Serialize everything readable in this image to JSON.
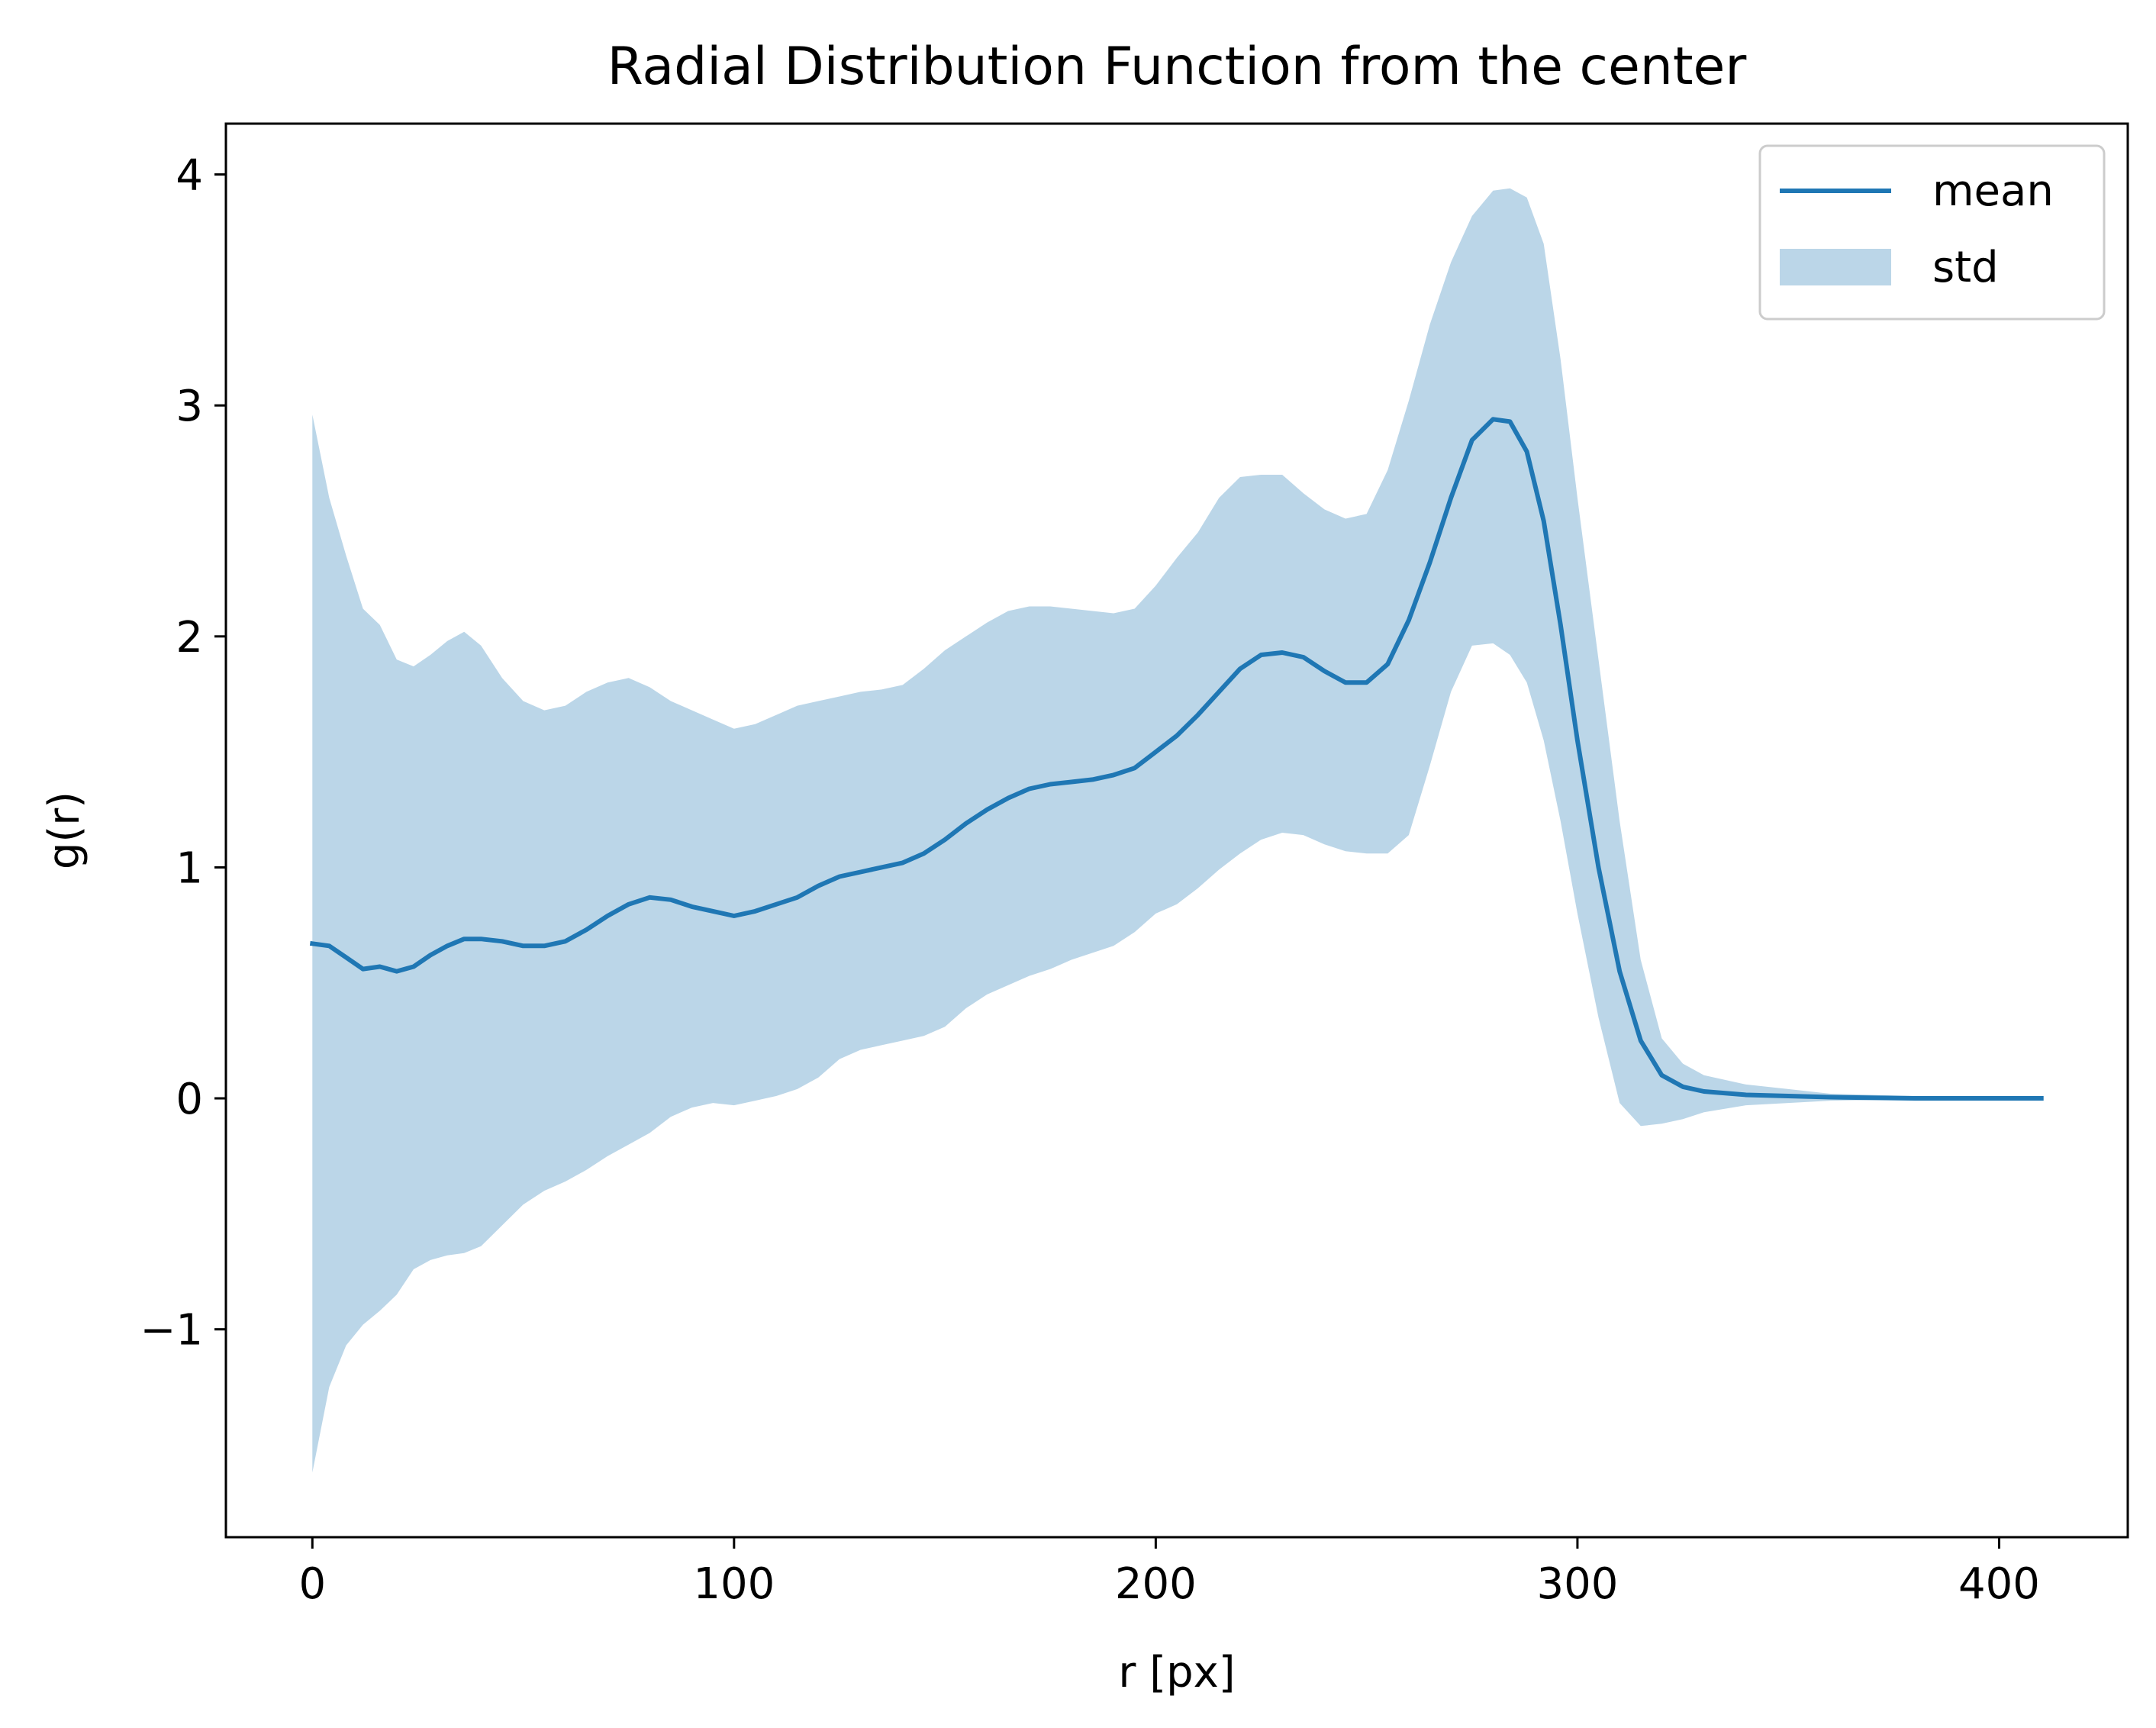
{
  "chart_data": {
    "type": "line",
    "title": "Radial Distribution Function from the center",
    "xlabel": "r [px]",
    "ylabel": "g(r)",
    "xlim": [
      -20.5,
      430.5
    ],
    "ylim": [
      -1.9,
      4.22
    ],
    "xticks": [
      0,
      100,
      200,
      300,
      400
    ],
    "xtick_labels": [
      "0",
      "100",
      "200",
      "300",
      "400"
    ],
    "yticks": [
      -1,
      0,
      1,
      2,
      3,
      4
    ],
    "ytick_labels": [
      "−1",
      "0",
      "1",
      "2",
      "3",
      "4"
    ],
    "grid": false,
    "legend": {
      "placement": "top-right",
      "entries": [
        {
          "label": "mean",
          "kind": "line",
          "color": "#1f77b4"
        },
        {
          "label": "std",
          "kind": "area",
          "color": "#bbd6e8"
        }
      ]
    },
    "x": [
      0,
      4,
      8,
      12,
      16,
      20,
      24,
      28,
      32,
      36,
      40,
      45,
      50,
      55,
      60,
      65,
      70,
      75,
      80,
      85,
      90,
      95,
      100,
      105,
      110,
      115,
      120,
      125,
      130,
      135,
      140,
      145,
      150,
      155,
      160,
      165,
      170,
      175,
      180,
      185,
      190,
      195,
      200,
      205,
      210,
      215,
      220,
      225,
      230,
      235,
      240,
      245,
      250,
      255,
      260,
      265,
      270,
      275,
      280,
      284,
      288,
      292,
      296,
      300,
      305,
      310,
      315,
      320,
      325,
      330,
      340,
      350,
      360,
      380,
      400,
      410
    ],
    "series": [
      {
        "name": "mean",
        "color": "#1f77b4",
        "values": [
          0.67,
          0.66,
          0.61,
          0.56,
          0.57,
          0.55,
          0.57,
          0.62,
          0.66,
          0.69,
          0.69,
          0.68,
          0.66,
          0.66,
          0.68,
          0.73,
          0.79,
          0.84,
          0.87,
          0.86,
          0.83,
          0.81,
          0.79,
          0.81,
          0.84,
          0.87,
          0.92,
          0.96,
          0.98,
          1.0,
          1.02,
          1.06,
          1.12,
          1.19,
          1.25,
          1.3,
          1.34,
          1.36,
          1.37,
          1.38,
          1.4,
          1.43,
          1.5,
          1.57,
          1.66,
          1.76,
          1.86,
          1.92,
          1.93,
          1.91,
          1.85,
          1.8,
          1.8,
          1.88,
          2.07,
          2.32,
          2.6,
          2.85,
          2.94,
          2.93,
          2.8,
          2.5,
          2.05,
          1.55,
          1.0,
          0.55,
          0.25,
          0.1,
          0.05,
          0.03,
          0.015,
          0.01,
          0.005,
          0.0,
          0.0,
          0.0
        ]
      },
      {
        "name": "std",
        "color": "#bbd6e8",
        "upper": [
          2.96,
          2.6,
          2.35,
          2.12,
          2.05,
          1.9,
          1.87,
          1.92,
          1.98,
          2.02,
          1.96,
          1.82,
          1.72,
          1.68,
          1.7,
          1.76,
          1.8,
          1.82,
          1.78,
          1.72,
          1.68,
          1.64,
          1.6,
          1.62,
          1.66,
          1.7,
          1.72,
          1.74,
          1.76,
          1.77,
          1.79,
          1.86,
          1.94,
          2.0,
          2.06,
          2.11,
          2.13,
          2.13,
          2.12,
          2.11,
          2.1,
          2.12,
          2.22,
          2.34,
          2.45,
          2.6,
          2.69,
          2.7,
          2.7,
          2.62,
          2.55,
          2.51,
          2.53,
          2.72,
          3.02,
          3.35,
          3.62,
          3.82,
          3.93,
          3.94,
          3.9,
          3.7,
          3.2,
          2.6,
          1.9,
          1.2,
          0.6,
          0.26,
          0.15,
          0.1,
          0.06,
          0.04,
          0.02,
          0.01,
          0.0,
          0.0
        ],
        "lower": [
          -1.62,
          -1.25,
          -1.07,
          -0.98,
          -0.92,
          -0.85,
          -0.74,
          -0.7,
          -0.68,
          -0.67,
          -0.64,
          -0.55,
          -0.46,
          -0.4,
          -0.36,
          -0.31,
          -0.25,
          -0.2,
          -0.15,
          -0.08,
          -0.04,
          -0.02,
          -0.03,
          -0.01,
          0.01,
          0.04,
          0.09,
          0.17,
          0.21,
          0.23,
          0.25,
          0.27,
          0.31,
          0.39,
          0.45,
          0.49,
          0.53,
          0.56,
          0.6,
          0.63,
          0.66,
          0.72,
          0.8,
          0.84,
          0.91,
          0.99,
          1.06,
          1.12,
          1.15,
          1.14,
          1.1,
          1.07,
          1.06,
          1.06,
          1.14,
          1.44,
          1.76,
          1.96,
          1.97,
          1.92,
          1.8,
          1.55,
          1.2,
          0.8,
          0.35,
          -0.02,
          -0.12,
          -0.11,
          -0.09,
          -0.06,
          -0.03,
          -0.02,
          -0.01,
          -0.005,
          0.0,
          0.0
        ]
      }
    ]
  }
}
